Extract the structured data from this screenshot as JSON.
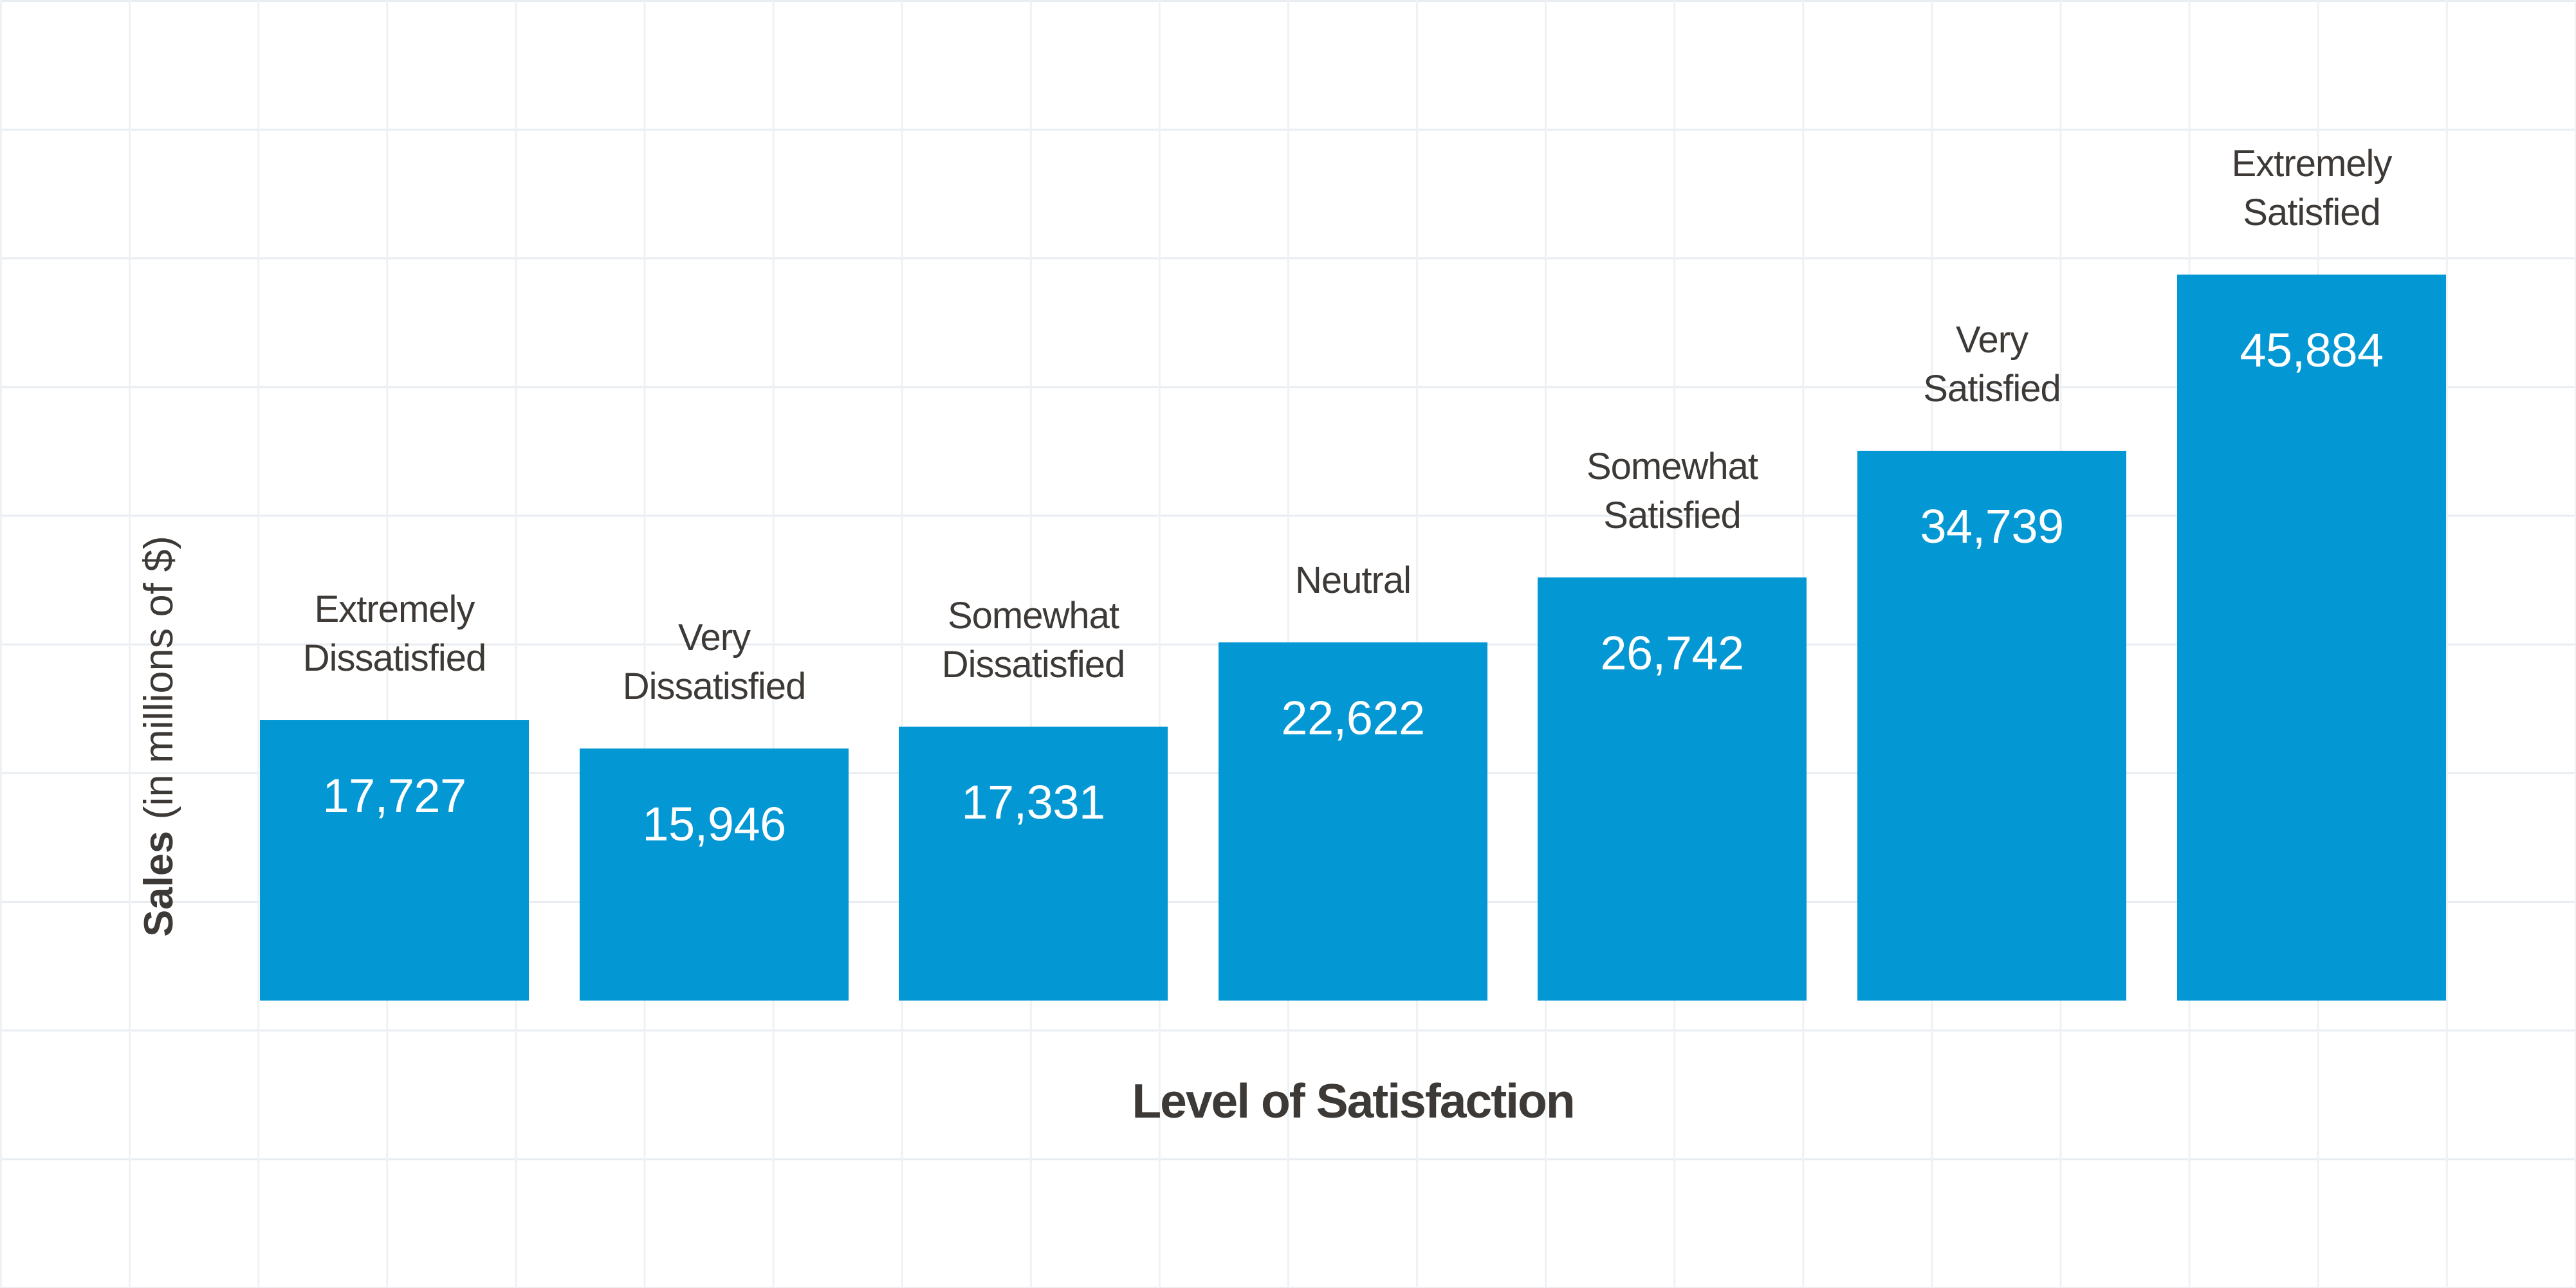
{
  "page": {
    "background": "#ffffff"
  },
  "chart_data": {
    "type": "bar",
    "title": "",
    "xlabel": "Level of Satisfaction",
    "ylabel": "Sales (in millions of $)",
    "ylabel_bold_part": "Sales",
    "ylabel_regular_part": "(in millions of $)",
    "categories": [
      "Extremely Dissatisfied",
      "Very Dissatisfied",
      "Somewhat Dissatisfied",
      "Neutral",
      "Somewhat Satisfied",
      "Very Satisfied",
      "Extremely Satisfied"
    ],
    "category_label_lines": [
      [
        "Extremely",
        "Dissatisfied"
      ],
      [
        "Very",
        "Dissatisfied"
      ],
      [
        "Somewhat",
        "Dissatisfied"
      ],
      [
        "Neutral"
      ],
      [
        "Somewhat",
        "Satisfied"
      ],
      [
        "Very",
        "Satisfied"
      ],
      [
        "Extremely",
        "Satisfied"
      ]
    ],
    "values": [
      17727,
      15946,
      17331,
      22622,
      26742,
      34739,
      45884
    ],
    "value_labels": [
      "17,727",
      "15,946",
      "17,331",
      "22,622",
      "26,742",
      "34,739",
      "45,884"
    ],
    "ylim": [
      0,
      46000
    ],
    "grid": true,
    "legend_position": "none",
    "value_label_position": "inside-top",
    "category_label_position": "above-bar",
    "colors": {
      "bar": "#0397d3",
      "value_text": "#ffffff",
      "label_text": "#3d3936",
      "grid_vertical": "#eef1f5",
      "grid_horizontal": "#e9edf2",
      "background": "#ffffff"
    }
  }
}
